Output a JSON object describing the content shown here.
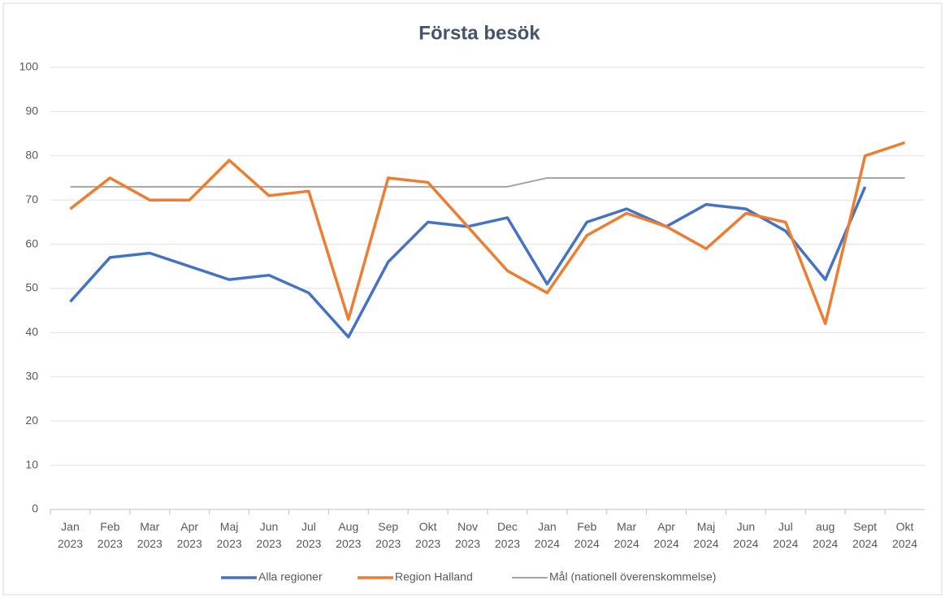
{
  "chart_data": {
    "type": "line",
    "title": "Första besök",
    "categories": [
      "Jan 2023",
      "Feb 2023",
      "Mar 2023",
      "Apr 2023",
      "Maj 2023",
      "Jun 2023",
      "Jul 2023",
      "Aug 2023",
      "Sep 2023",
      "Okt 2023",
      "Nov 2023",
      "Dec 2023",
      "Jan 2024",
      "Feb 2024",
      "Mar 2024",
      "Apr 2024",
      "Maj 2024",
      "Jun 2024",
      "Jul 2024",
      "aug 2024",
      "Sept 2024",
      "Okt 2024"
    ],
    "series": [
      {
        "name": "Alla regioner",
        "color": "#4472c4",
        "values": [
          47,
          57,
          58,
          55,
          52,
          53,
          49,
          39,
          56,
          65,
          64,
          66,
          51,
          65,
          68,
          64,
          69,
          68,
          63,
          52,
          73,
          null
        ]
      },
      {
        "name": "Region Halland",
        "color": "#ed7d31",
        "values": [
          68,
          75,
          70,
          70,
          79,
          71,
          72,
          43,
          75,
          74,
          64,
          54,
          49,
          62,
          67,
          64,
          59,
          67,
          65,
          42,
          80,
          83
        ]
      },
      {
        "name": "Mål (nationell överenskommelse)",
        "color": "#a5a5a5",
        "values": [
          73,
          73,
          73,
          73,
          73,
          73,
          73,
          73,
          73,
          73,
          73,
          73,
          75,
          75,
          75,
          75,
          75,
          75,
          75,
          75,
          75,
          75
        ]
      }
    ],
    "ylim": [
      0,
      100
    ],
    "yticks": [
      0,
      10,
      20,
      30,
      40,
      50,
      60,
      70,
      80,
      90,
      100
    ],
    "grid": true,
    "legend": "bottom"
  }
}
